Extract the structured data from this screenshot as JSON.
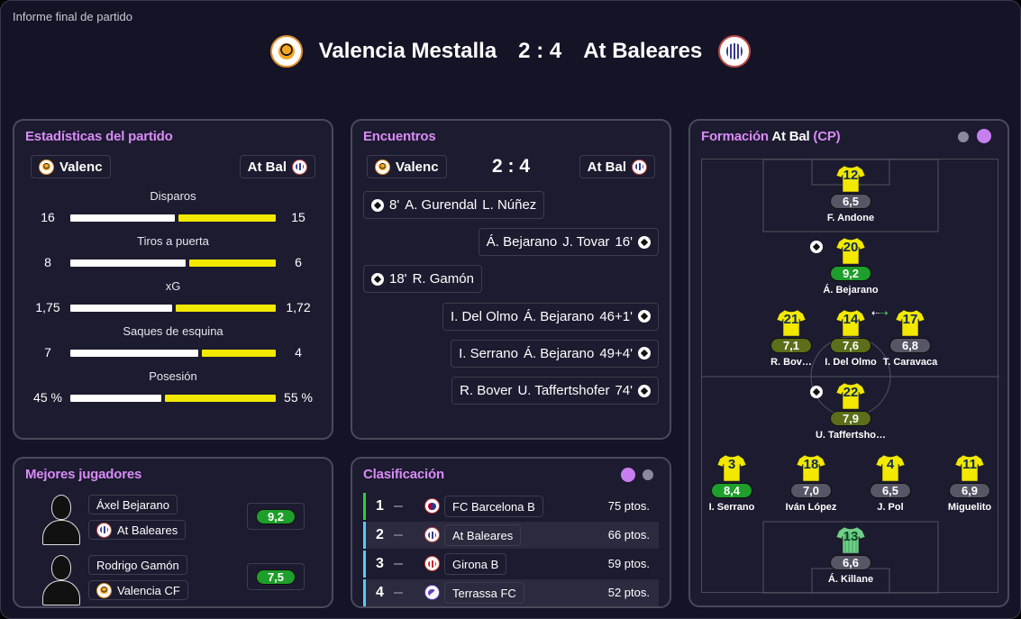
{
  "window_title": "Informe final de partido",
  "header": {
    "home": "Valencia Mestalla",
    "score": "2 : 4",
    "away": "At Baleares"
  },
  "stats_panel": {
    "title": "Estadísticas del partido",
    "home_chip": "Valenc",
    "away_chip": "At Bal",
    "rows": [
      {
        "label": "Disparos",
        "home": "16",
        "away": "15",
        "home_share": 0.516
      },
      {
        "label": "Tiros a puerta",
        "home": "8",
        "away": "6",
        "home_share": 0.571
      },
      {
        "label": "xG",
        "home": "1,75",
        "away": "1,72",
        "home_share": 0.504
      },
      {
        "label": "Saques de esquina",
        "home": "7",
        "away": "4",
        "home_share": 0.636
      },
      {
        "label": "Posesión",
        "home": "45 %",
        "away": "55 %",
        "home_share": 0.45
      }
    ]
  },
  "events_panel": {
    "title": "Encuentros",
    "home_chip": "Valenc",
    "away_chip": "At Bal",
    "score": "2 : 4",
    "events": [
      {
        "side": "home",
        "minute": "8'",
        "scorer": "A. Gurendal",
        "assist": "L. Núñez"
      },
      {
        "side": "away",
        "minute": "16'",
        "scorer": "J. Tovar",
        "assist": "Á. Bejarano"
      },
      {
        "side": "home",
        "minute": "18'",
        "scorer": "R. Gamón",
        "assist": ""
      },
      {
        "side": "away",
        "minute": "46+1'",
        "scorer": "Á. Bejarano",
        "assist": "I. Del Olmo"
      },
      {
        "side": "away",
        "minute": "49+4'",
        "scorer": "Á. Bejarano",
        "assist": "I. Serrano"
      },
      {
        "side": "away",
        "minute": "74'",
        "scorer": "U. Taffertshofer",
        "assist": "R. Bover"
      }
    ]
  },
  "best_players": {
    "title": "Mejores jugadores",
    "players": [
      {
        "name": "Áxel Bejarano",
        "team": "At Baleares",
        "rating": "9,2",
        "rating_color": "green"
      },
      {
        "name": "Rodrigo Gamón",
        "team": "Valencia CF",
        "rating": "7,5",
        "rating_color": "green"
      }
    ]
  },
  "standings": {
    "title": "Clasificación",
    "rows": [
      {
        "pos": "1",
        "team": "FC Barcelona B",
        "pts": "75 ptos.",
        "edge": "#2ecc40"
      },
      {
        "pos": "2",
        "team": "At Baleares",
        "pts": "66 ptos.",
        "edge": "#5ac8fa"
      },
      {
        "pos": "3",
        "team": "Girona B",
        "pts": "59 ptos.",
        "edge": "#5ac8fa"
      },
      {
        "pos": "4",
        "team": "Terrassa FC",
        "pts": "52 ptos.",
        "edge": "#5ac8fa"
      }
    ]
  },
  "formation": {
    "title_prefix": "Formación",
    "team": "At Bal",
    "suffix": "(CP)",
    "players": [
      {
        "number": "12",
        "rating": "6,5",
        "name": "F. Andone",
        "rating_color": "grey"
      },
      {
        "number": "20",
        "rating": "9,2",
        "name": "Á. Bejarano",
        "rating_color": "green"
      },
      {
        "number": "21",
        "rating": "7,1",
        "name": "R. Bov…",
        "rating_color": "olive"
      },
      {
        "number": "14",
        "rating": "7,6",
        "name": "I. Del Olmo",
        "rating_color": "olive"
      },
      {
        "number": "17",
        "rating": "6,8",
        "name": "T. Caravaca",
        "rating_color": "grey"
      },
      {
        "number": "22",
        "rating": "7,9",
        "name": "U. Taffertsho…",
        "rating_color": "olive"
      },
      {
        "number": "3",
        "rating": "8,4",
        "name": "I. Serrano",
        "rating_color": "green"
      },
      {
        "number": "18",
        "rating": "7,0",
        "name": "Iván López",
        "rating_color": "grey"
      },
      {
        "number": "4",
        "rating": "6,5",
        "name": "J. Pol",
        "rating_color": "grey"
      },
      {
        "number": "11",
        "rating": "6,9",
        "name": "Miguelito",
        "rating_color": "grey"
      },
      {
        "number": "13",
        "rating": "6,6",
        "name": "Á. Killane",
        "rating_color": "grey"
      }
    ]
  },
  "colors": {
    "accent": "#d88bf6",
    "away_bar": "#f2e800",
    "home_bar": "#ffffff",
    "green": "#1e9e2a",
    "olive": "#5b6e1a",
    "grey": "#565666",
    "gk_shirt": "#6fd089"
  }
}
